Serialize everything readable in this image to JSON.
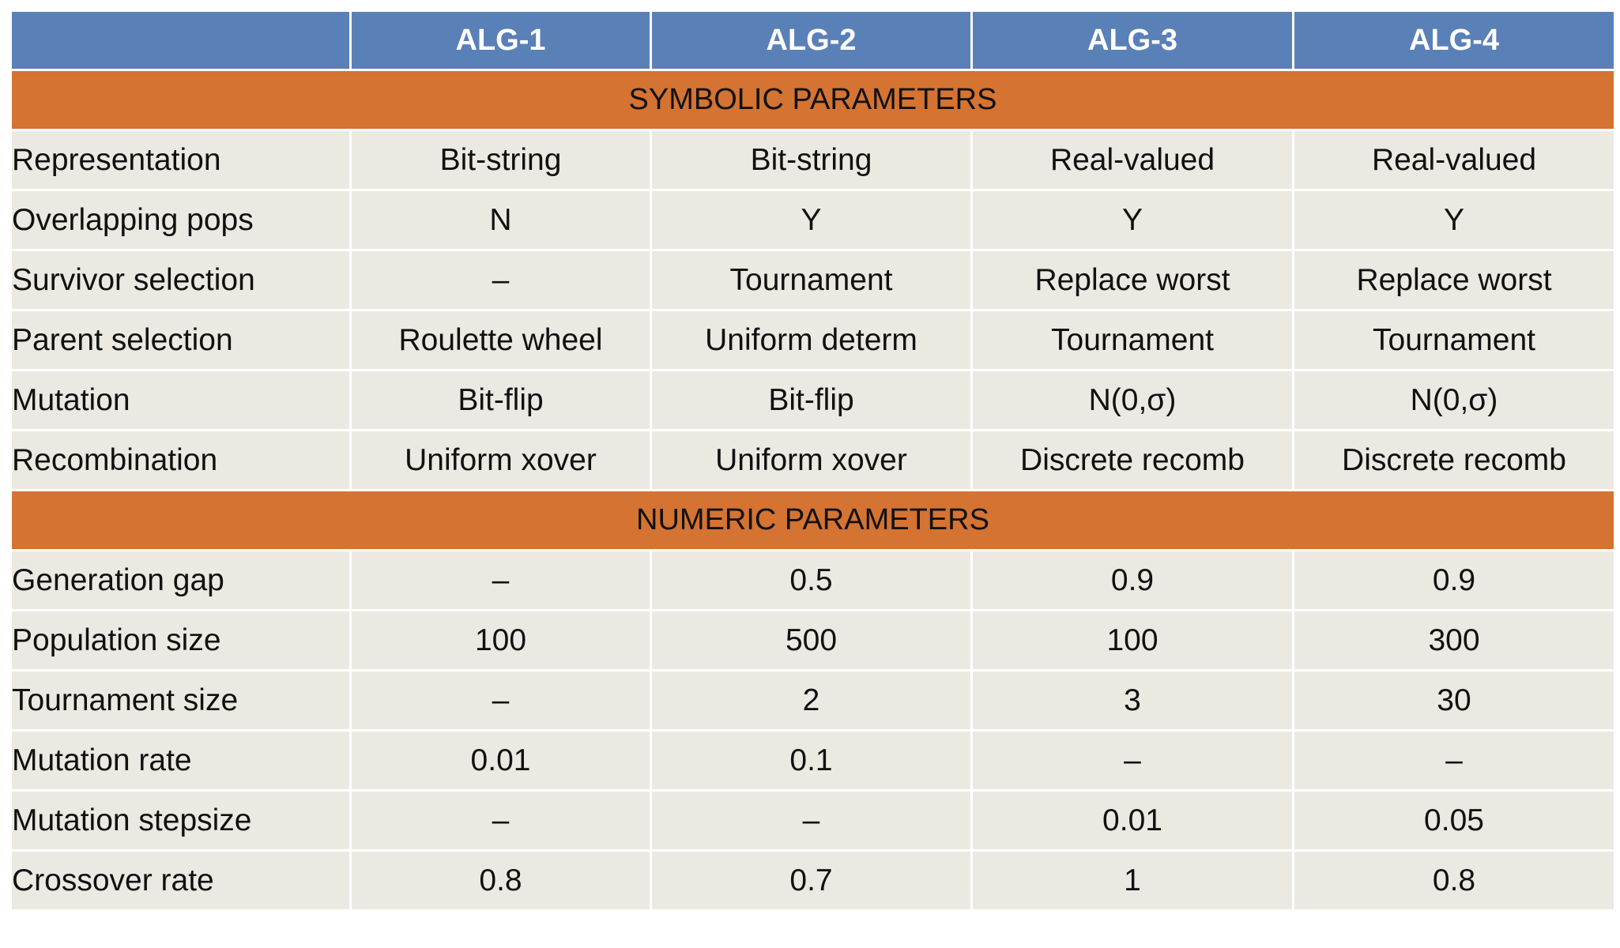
{
  "columns": [
    "",
    "ALG-1",
    "ALG-2",
    "ALG-3",
    "ALG-4"
  ],
  "sections": [
    {
      "title": "SYMBOLIC PARAMETERS",
      "rows": [
        {
          "label": "Representation",
          "values": [
            "Bit-string",
            "Bit-string",
            "Real-valued",
            "Real-valued"
          ]
        },
        {
          "label": "Overlapping pops",
          "values": [
            "N",
            "Y",
            "Y",
            "Y"
          ]
        },
        {
          "label": "Survivor selection",
          "values": [
            "–",
            "Tournament",
            "Replace worst",
            "Replace worst"
          ]
        },
        {
          "label": "Parent selection",
          "values": [
            "Roulette wheel",
            "Uniform determ",
            "Tournament",
            "Tournament"
          ]
        },
        {
          "label": "Mutation",
          "values": [
            "Bit-flip",
            "Bit-flip",
            "N(0,σ)",
            "N(0,σ)"
          ]
        },
        {
          "label": "Recombination",
          "values": [
            "Uniform xover",
            "Uniform xover",
            "Discrete recomb",
            "Discrete recomb"
          ]
        }
      ]
    },
    {
      "title": "NUMERIC PARAMETERS",
      "rows": [
        {
          "label": "Generation gap",
          "values": [
            "–",
            "0.5",
            "0.9",
            "0.9"
          ]
        },
        {
          "label": "Population size",
          "values": [
            "100",
            "500",
            "100",
            "300"
          ]
        },
        {
          "label": "Tournament size",
          "values": [
            "–",
            "2",
            "3",
            "30"
          ]
        },
        {
          "label": "Mutation rate",
          "values": [
            "0.01",
            "0.1",
            "–",
            "–"
          ]
        },
        {
          "label": "Mutation stepsize",
          "values": [
            "–",
            "–",
            "0.01",
            "0.05"
          ]
        },
        {
          "label": "Crossover rate",
          "values": [
            "0.8",
            "0.7",
            "1",
            "0.8"
          ]
        }
      ]
    }
  ],
  "colors": {
    "header": "#5a80b8",
    "section": "#d47332",
    "cell": "#ebe9e1"
  }
}
